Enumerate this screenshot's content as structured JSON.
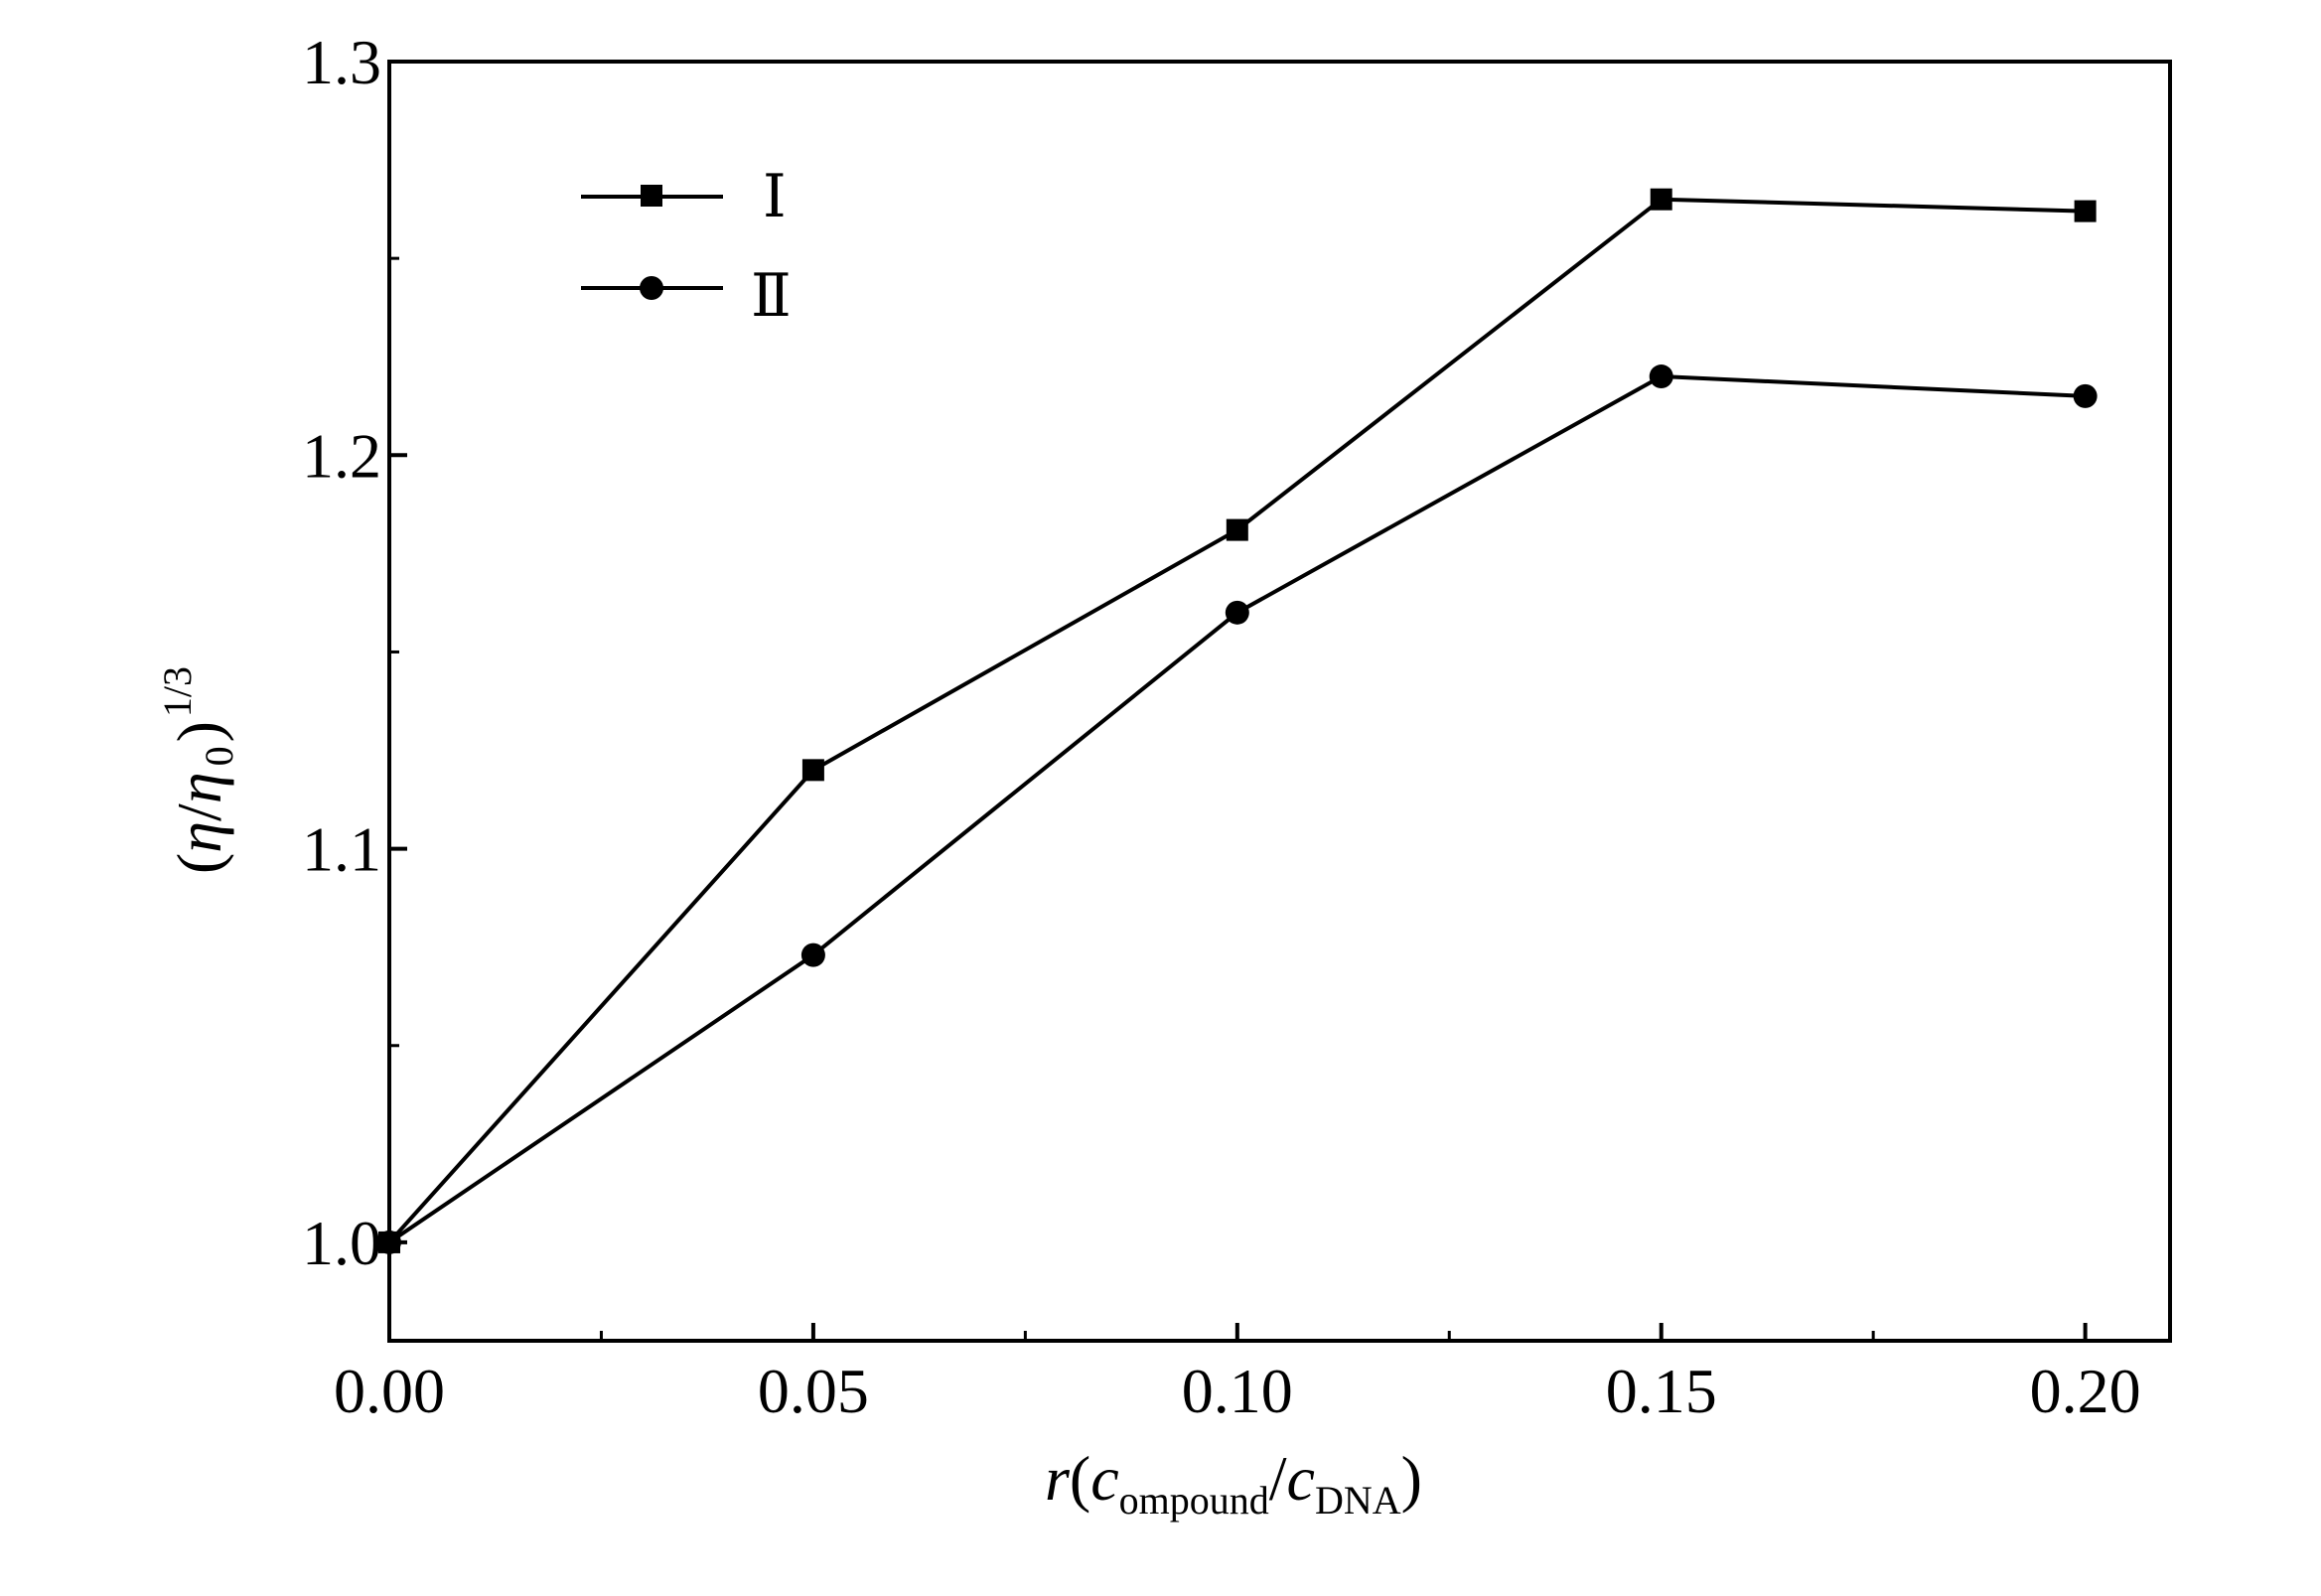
{
  "chart_data": {
    "type": "line",
    "x": [
      0.0,
      0.05,
      0.1,
      0.15,
      0.2
    ],
    "x_tick_labels": [
      "0.00",
      "0.05",
      "0.10",
      "0.15",
      "0.20"
    ],
    "y_tick_labels": [
      "1.0",
      "1.1",
      "1.2",
      "1.3"
    ],
    "xlim": [
      0.0,
      0.21
    ],
    "ylim": [
      0.975,
      1.3
    ],
    "x_ticks": [
      0.0,
      0.05,
      0.1,
      0.15,
      0.2
    ],
    "x_minor_ticks": [
      0.025,
      0.075,
      0.125,
      0.175
    ],
    "y_ticks": [
      1.0,
      1.1,
      1.2,
      1.3
    ],
    "y_minor_ticks": [
      1.05,
      1.15,
      1.25
    ],
    "xlabel": {
      "r": "r",
      "open": "(",
      "c1": "c",
      "sub1": "ompound",
      "slash": "/",
      "c2": "c",
      "sub2": "DNA",
      "close": ")"
    },
    "ylabel": {
      "open": "(",
      "eta": "η",
      "slash": "/",
      "eta0": "η",
      "sub": "0",
      "close": ")",
      "sup": "1/3"
    },
    "legend_position": "top-left",
    "grid": false,
    "series": [
      {
        "name": "Ⅰ",
        "marker": "square",
        "color": "#000000",
        "values": [
          1.0,
          1.12,
          1.181,
          1.265,
          1.262
        ]
      },
      {
        "name": "Ⅱ",
        "marker": "circle",
        "color": "#000000",
        "values": [
          1.0,
          1.073,
          1.16,
          1.22,
          1.215
        ]
      }
    ]
  }
}
